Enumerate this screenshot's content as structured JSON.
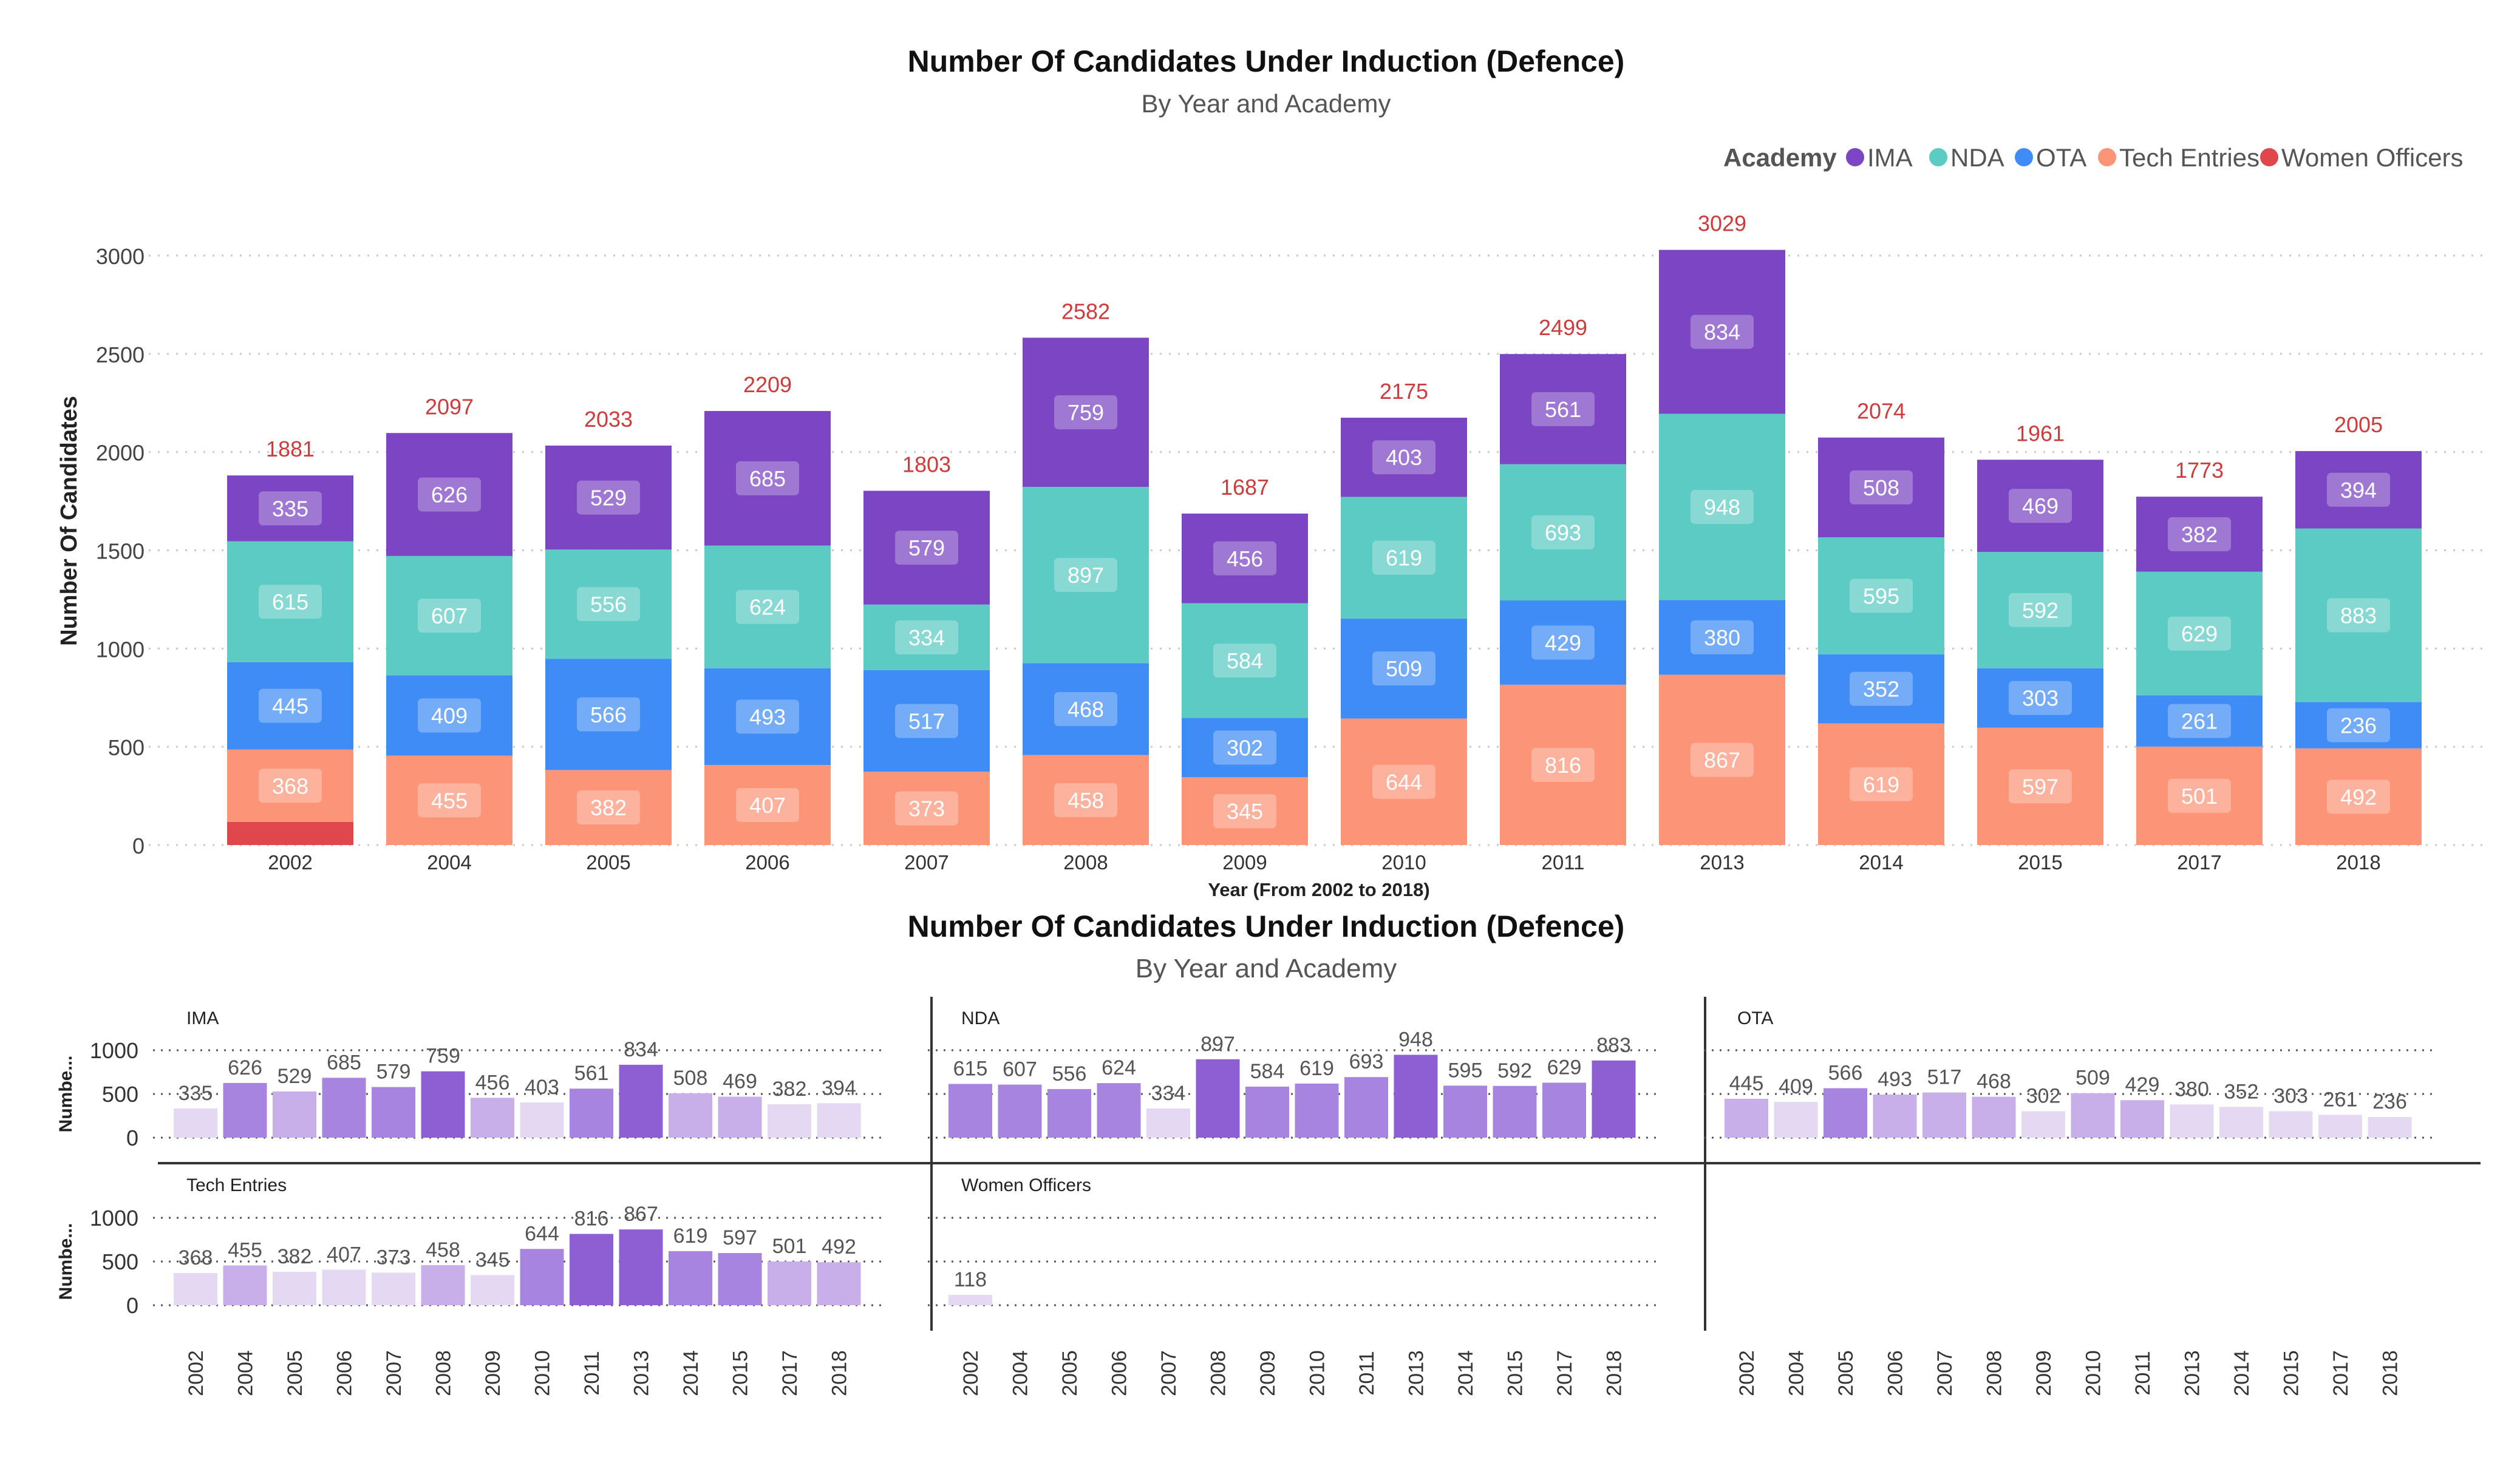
{
  "main_chart": {
    "title": "Number Of Candidates Under Induction (Defence)",
    "subtitle": "By Year and Academy",
    "legend_title": "Academy",
    "xlabel": "Year (From 2002 to 2018)",
    "ylabel": "Number Of Candidates"
  },
  "small_multiples": {
    "title": "Number Of Candidates Under Induction (Defence)",
    "subtitle": "By Year and Academy",
    "ylabel": "Numbe..."
  },
  "colors": {
    "IMA": "#7b45c3",
    "NDA": "#5bcbc4",
    "OTA": "#3f8cf6",
    "Tech Entries": "#fc9578",
    "Women Officers": "#e0474c",
    "total_label": "#cf3a3a",
    "text": "#333333",
    "grid": "#c9c9c9"
  },
  "chart_data": [
    {
      "type": "bar",
      "stacked": true,
      "title": "Number Of Candidates Under Induction (Defence)",
      "subtitle": "By Year and Academy",
      "xlabel": "Year (From 2002 to 2018)",
      "ylabel": "Number Of Candidates",
      "ylim": [
        0,
        3000
      ],
      "yticks": [
        0,
        500,
        1000,
        1500,
        2000,
        2500,
        3000
      ],
      "grid": true,
      "legend_position": "top-right",
      "categories": [
        "2002",
        "2004",
        "2005",
        "2006",
        "2007",
        "2008",
        "2009",
        "2010",
        "2011",
        "2013",
        "2014",
        "2015",
        "2017",
        "2018"
      ],
      "series": [
        {
          "name": "Women Officers",
          "values": [
            118,
            0,
            0,
            0,
            0,
            0,
            0,
            0,
            0,
            0,
            0,
            0,
            0,
            0
          ]
        },
        {
          "name": "Tech Entries",
          "values": [
            368,
            455,
            382,
            407,
            373,
            458,
            345,
            644,
            816,
            867,
            619,
            597,
            501,
            492
          ]
        },
        {
          "name": "OTA",
          "values": [
            445,
            409,
            566,
            493,
            517,
            468,
            302,
            509,
            429,
            380,
            352,
            303,
            261,
            236
          ]
        },
        {
          "name": "NDA",
          "values": [
            615,
            607,
            556,
            624,
            334,
            897,
            584,
            619,
            693,
            948,
            595,
            592,
            629,
            883
          ]
        },
        {
          "name": "IMA",
          "values": [
            335,
            626,
            529,
            685,
            579,
            759,
            456,
            403,
            561,
            834,
            508,
            469,
            382,
            394
          ]
        }
      ],
      "totals": [
        1881,
        2097,
        2033,
        2209,
        1803,
        2582,
        1687,
        2175,
        2499,
        3029,
        2074,
        1961,
        1773,
        2005
      ],
      "legend_order": [
        "IMA",
        "NDA",
        "OTA",
        "Tech Entries",
        "Women Officers"
      ]
    },
    {
      "type": "bar",
      "layout": "small-multiples",
      "title": "Number Of Candidates Under Induction (Defence)",
      "subtitle": "By Year and Academy",
      "ylabel": "Numbe...",
      "ylim": [
        0,
        1000
      ],
      "yticks": [
        0,
        500,
        1000
      ],
      "categories": [
        "2002",
        "2004",
        "2005",
        "2006",
        "2007",
        "2008",
        "2009",
        "2010",
        "2011",
        "2013",
        "2014",
        "2015",
        "2017",
        "2018"
      ],
      "panels": [
        {
          "name": "IMA",
          "values": [
            335,
            626,
            529,
            685,
            579,
            759,
            456,
            403,
            561,
            834,
            508,
            469,
            382,
            394
          ]
        },
        {
          "name": "NDA",
          "values": [
            615,
            607,
            556,
            624,
            334,
            897,
            584,
            619,
            693,
            948,
            595,
            592,
            629,
            883
          ]
        },
        {
          "name": "OTA",
          "values": [
            445,
            409,
            566,
            493,
            517,
            468,
            302,
            509,
            429,
            380,
            352,
            303,
            261,
            236
          ]
        },
        {
          "name": "Tech Entries",
          "values": [
            368,
            455,
            382,
            407,
            373,
            458,
            345,
            644,
            816,
            867,
            619,
            597,
            501,
            492
          ]
        },
        {
          "name": "Women Officers",
          "values": [
            118,
            null,
            null,
            null,
            null,
            null,
            null,
            null,
            null,
            null,
            null,
            null,
            null,
            null
          ]
        }
      ]
    }
  ]
}
